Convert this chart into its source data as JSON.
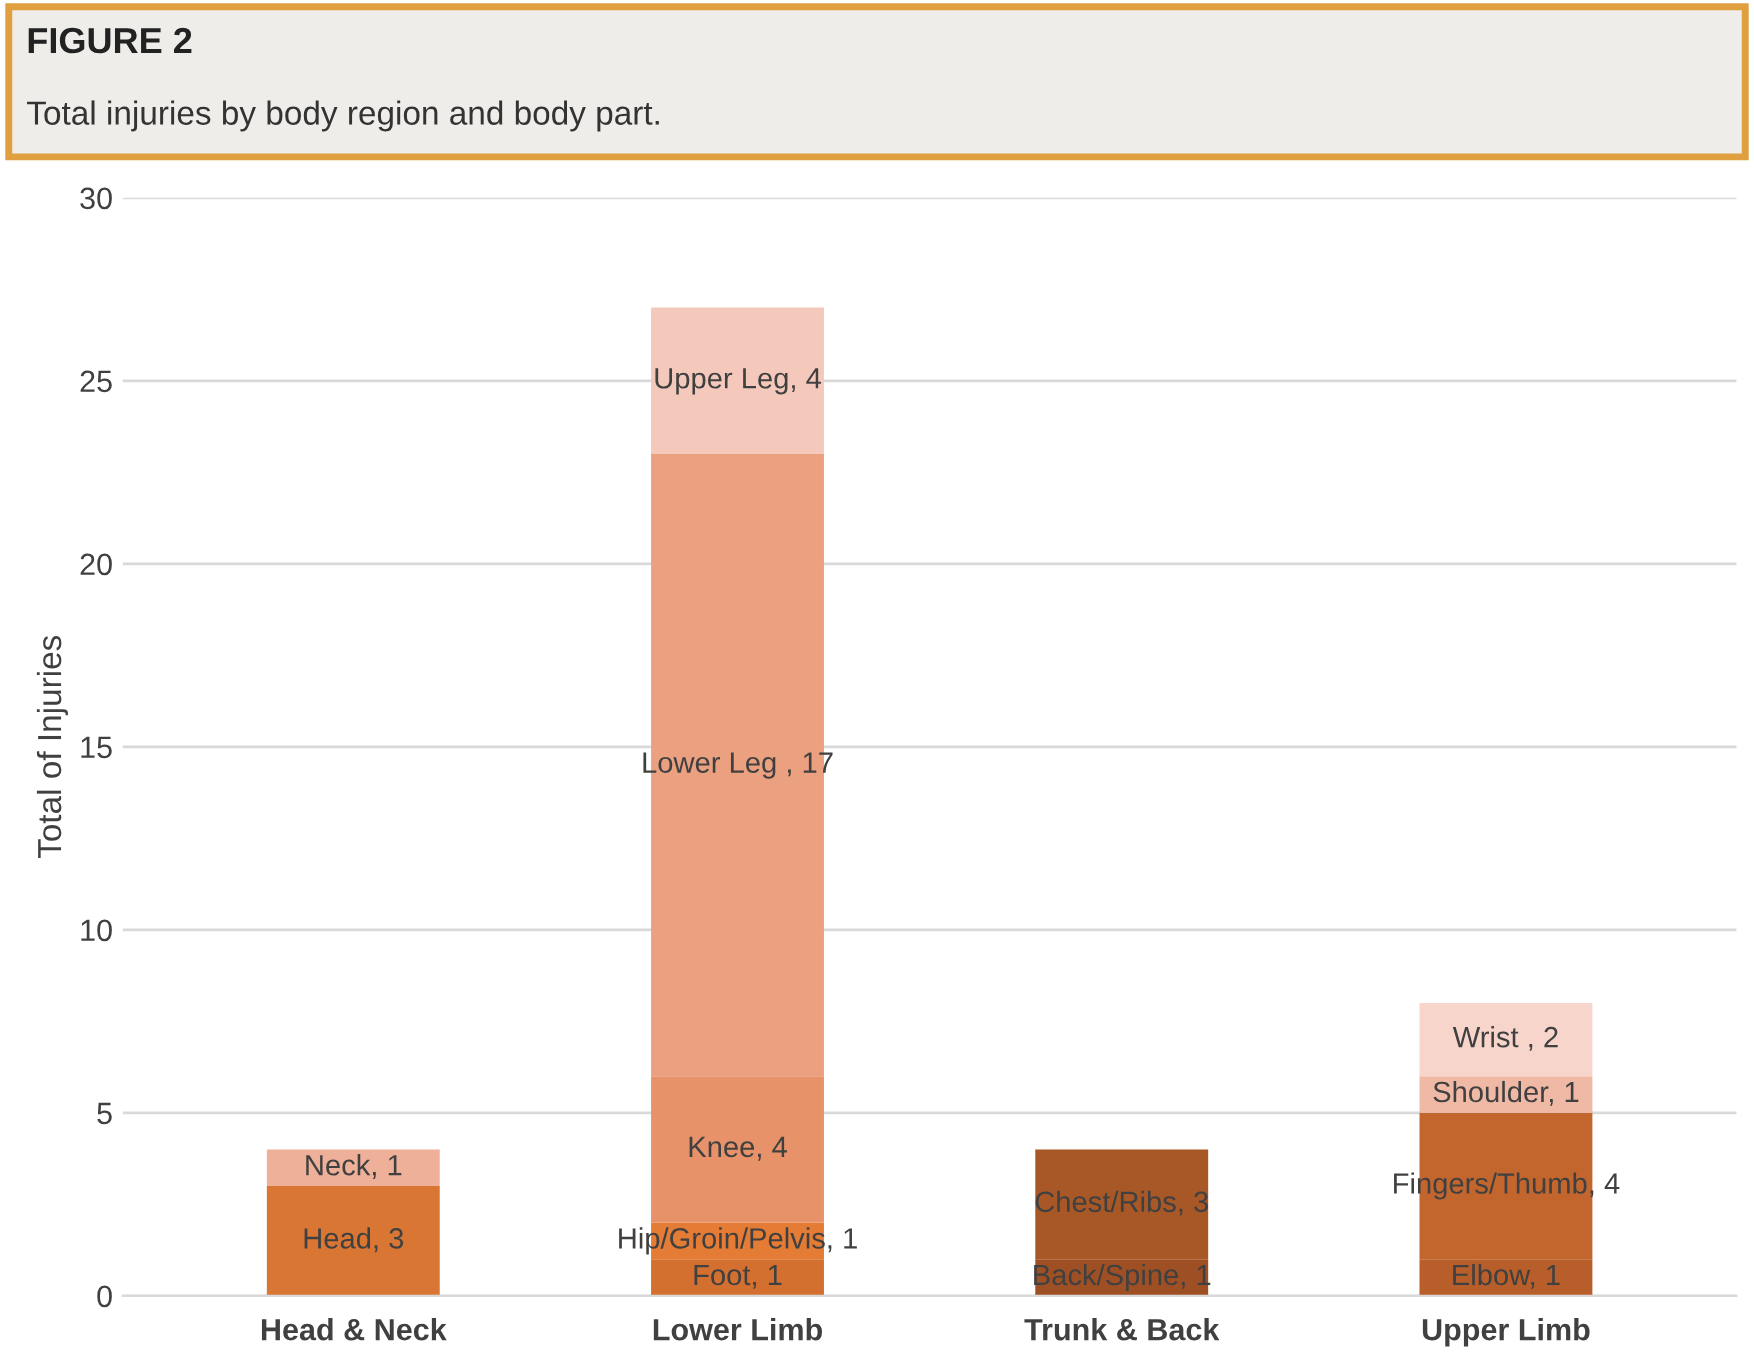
{
  "chart_data": {
    "type": "bar",
    "title": "FIGURE 2",
    "subtitle": "Total injuries by body region and body part.",
    "ylabel": "Total of Injuries",
    "categories": [
      "Head & Neck",
      "Lower Limb",
      "Trunk & Back",
      "Upper Limb"
    ],
    "stacked": true,
    "series": [
      {
        "values": [
          3,
          1,
          1,
          1
        ],
        "colors": [
          "#d97634",
          "#d4702f",
          "#9e5024",
          "#b85e2a"
        ],
        "value_labels": [
          "Head, 3",
          "Foot, 1",
          "Back/Spine, 1",
          "Elbow, 1"
        ]
      },
      {
        "values": [
          1,
          1,
          3,
          4
        ],
        "colors": [
          "#efb09a",
          "#e57c35",
          "#a85826",
          "#c3662e"
        ],
        "value_labels": [
          "Neck, 1",
          "Hip/Groin/Pelvis, 1",
          "Chest/Ribs, 3",
          "Fingers/Thumb, 4"
        ]
      },
      {
        "values": [
          null,
          4,
          null,
          1
        ],
        "colors": [
          null,
          "#e8926a",
          null,
          "#f0b9a6"
        ],
        "value_labels": [
          null,
          "Knee, 4",
          null,
          "Shoulder, 1"
        ]
      },
      {
        "values": [
          null,
          17,
          null,
          2
        ],
        "colors": [
          null,
          "#eba080",
          null,
          "#f7d5cb"
        ],
        "value_labels": [
          null,
          "Lower Leg , 17",
          null,
          "Wrist , 2"
        ]
      },
      {
        "values": [
          null,
          4,
          null,
          null
        ],
        "colors": [
          null,
          "#f4c9bb",
          null,
          null
        ],
        "value_labels": [
          null,
          "Upper Leg, 4",
          null,
          null
        ]
      }
    ],
    "ylim": [
      0,
      30
    ],
    "yticks": [
      0,
      5,
      10,
      15,
      20,
      25,
      30
    ],
    "grid": "y"
  }
}
